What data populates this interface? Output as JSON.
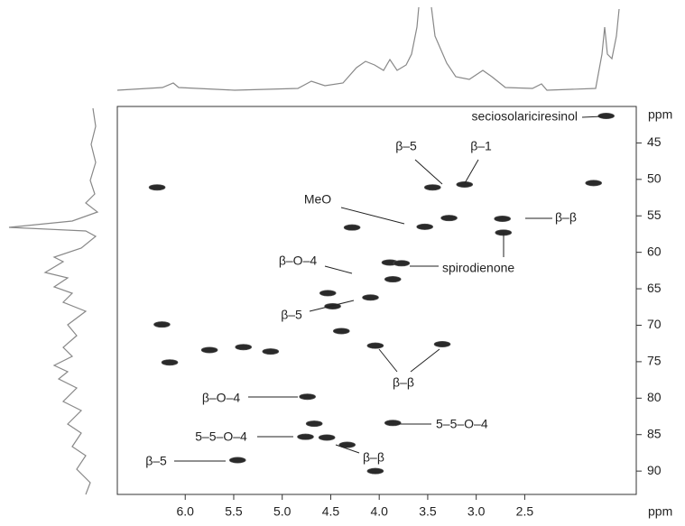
{
  "chart_data": {
    "type": "scatter",
    "x": [
      1.66,
      3.45,
      3.12,
      6.29,
      1.79,
      3.53,
      3.28,
      2.73,
      2.72,
      4.28,
      3.89,
      3.86,
      3.77,
      4.09,
      4.53,
      4.48,
      4.39,
      6.24,
      4.04,
      3.35,
      5.4,
      5.12,
      5.75,
      6.16,
      4.74,
      4.67,
      3.86,
      4.76,
      4.33,
      4.54,
      5.46,
      4.04
    ],
    "values": [
      41.3,
      51.1,
      50.7,
      51.1,
      50.5,
      56.5,
      55.3,
      55.4,
      57.3,
      56.6,
      61.4,
      63.7,
      61.5,
      66.2,
      65.6,
      67.4,
      70.8,
      69.9,
      72.8,
      72.6,
      73.0,
      73.6,
      73.4,
      75.1,
      79.8,
      83.5,
      83.4,
      85.3,
      86.4,
      85.4,
      88.5,
      90.0
    ],
    "color": "#2a2a2a",
    "xlim": [
      6.7,
      1.35
    ],
    "ylim": [
      40,
      93.2
    ],
    "xticks": [
      {
        "value": 6,
        "label": "6.0"
      },
      5.5,
      {
        "value": 5,
        "label": "5.0"
      },
      4.5,
      {
        "value": 4,
        "label": "4.0"
      },
      3.5,
      {
        "value": 3,
        "label": "3.0"
      },
      2.5
    ],
    "yticks": [
      45,
      50,
      55,
      60,
      65,
      70,
      75,
      80,
      85,
      90
    ],
    "x_label": "ppm",
    "y_label": "ppm",
    "annotations": [
      "seciosolariciresinol",
      "β–5",
      "β–1",
      "MeO",
      "β–β",
      "spirodienone",
      "β–O–4",
      "β–5",
      "β–β",
      "β–O–4",
      "5–5–O–4",
      "5–5–O–4",
      "β–β",
      "β–5"
    ]
  }
}
